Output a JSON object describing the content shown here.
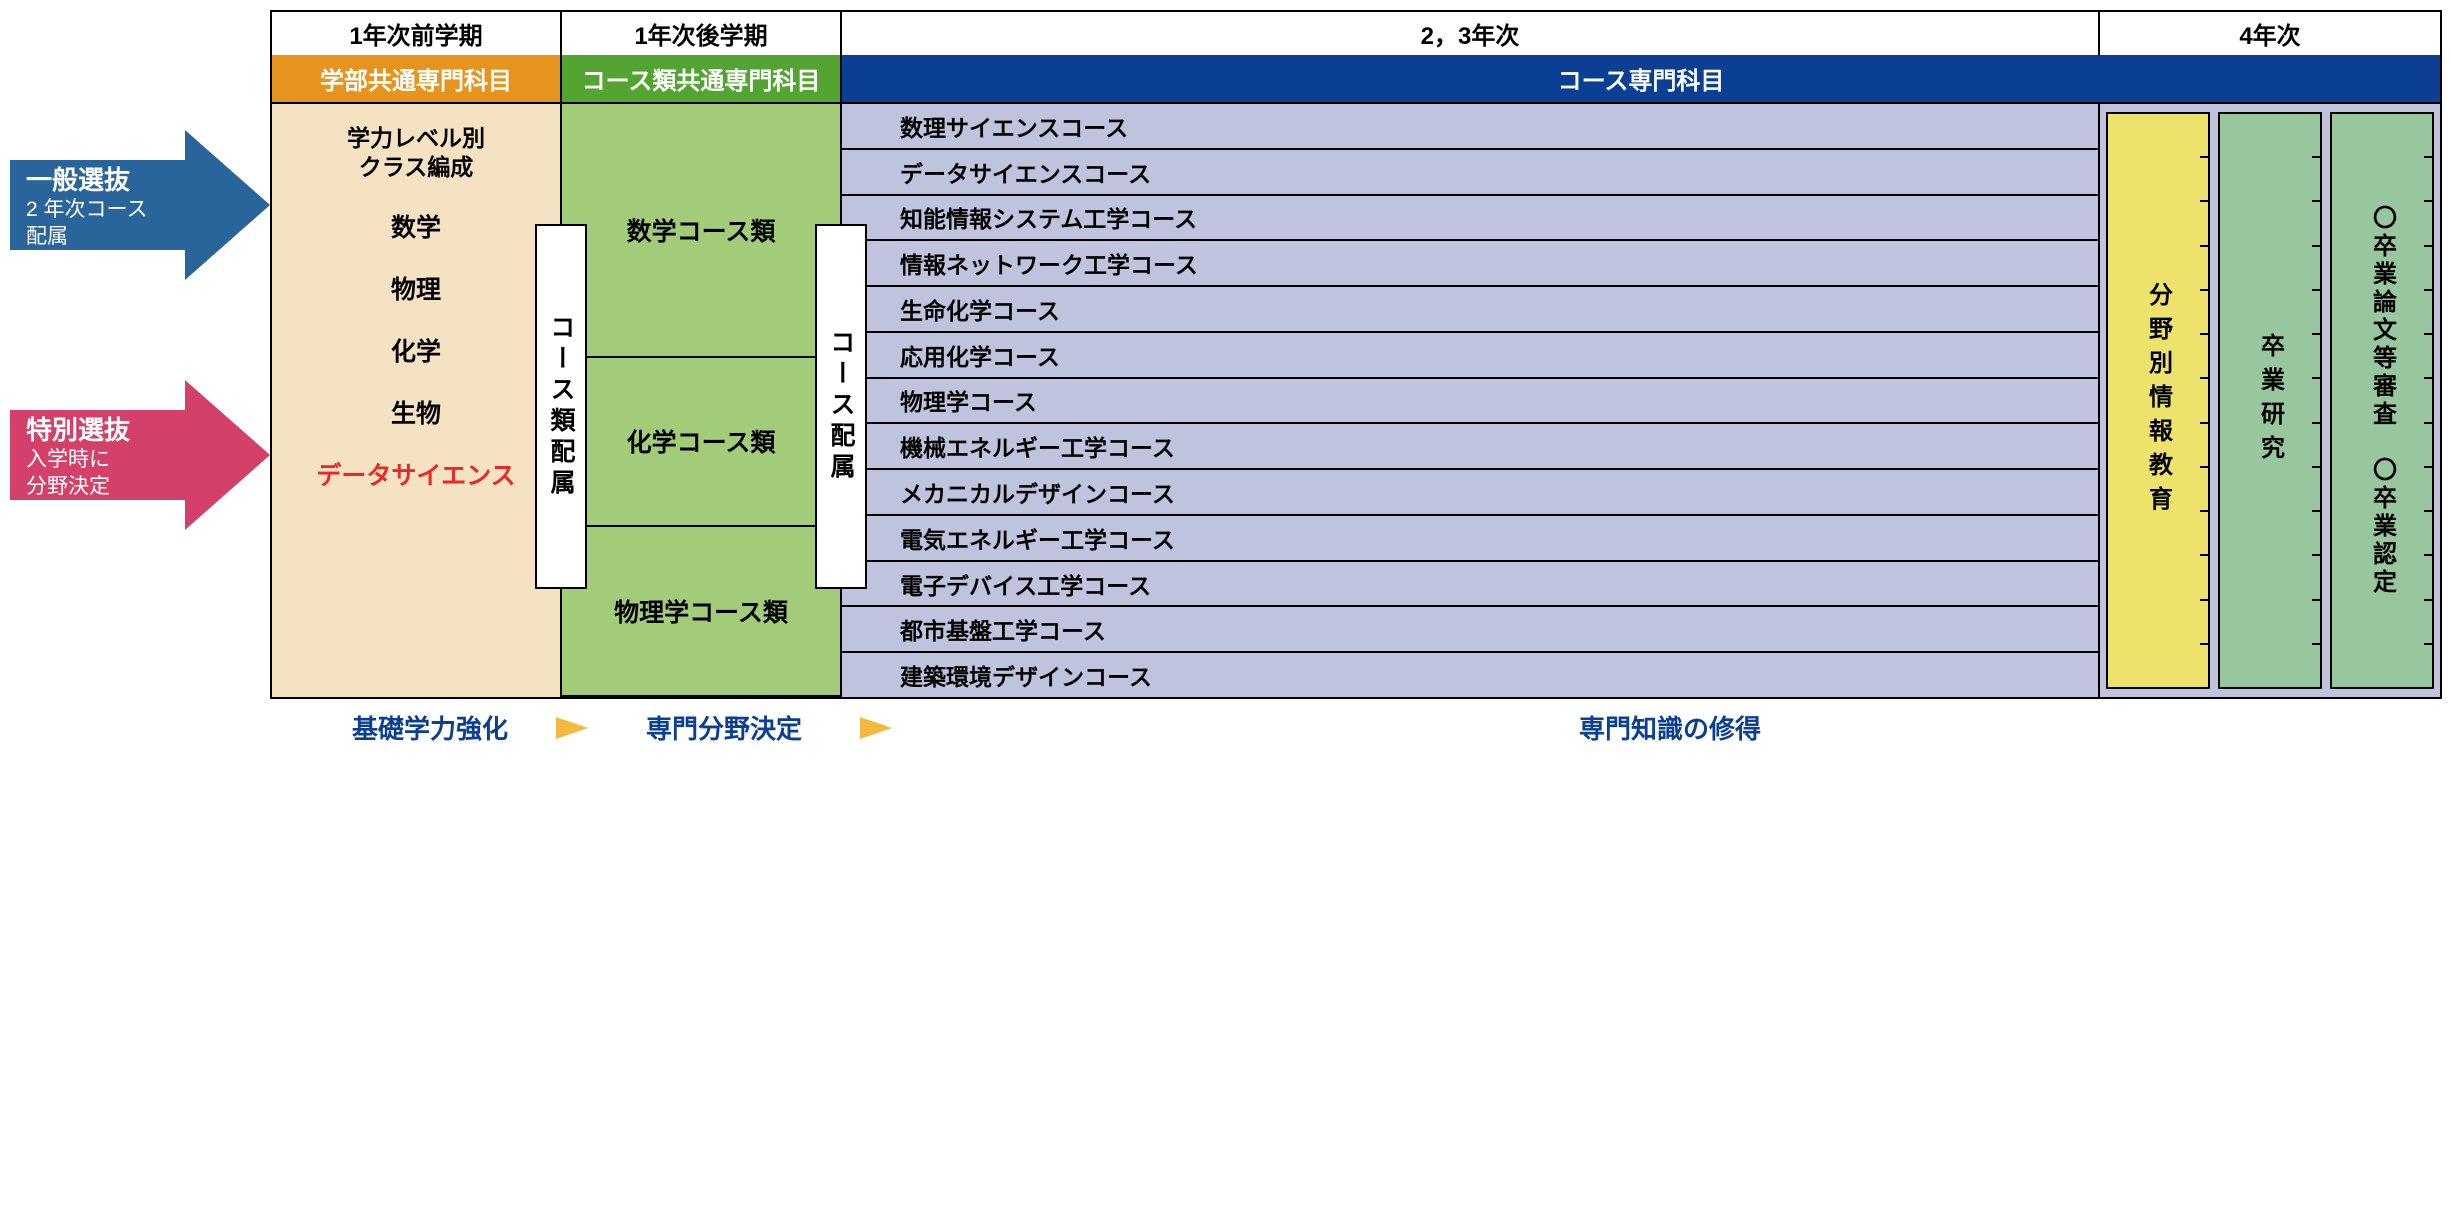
{
  "colors": {
    "arrow_blue": "#29649b",
    "arrow_pink": "#d34069",
    "header_orange": "#e7941e",
    "header_green": "#53a430",
    "header_blue": "#0b3f94",
    "body_beige": "#f5e2c3",
    "body_green": "#a3cc7a",
    "body_lilac": "#c0c3dd",
    "year4_yellow": "#ede26b",
    "year4_green": "#98c69e",
    "ds_red": "#e72a27",
    "footer_blue": "#0b3f94",
    "footer_arrow": "#f4ba3e"
  },
  "arrows": {
    "general": {
      "title": "一般選抜",
      "sub": "2 年次コース\n配属"
    },
    "special": {
      "title": "特別選抜",
      "sub": "入学時に\n分野決定"
    }
  },
  "headers": {
    "y1a": "1年次前学期",
    "y1b": "1年次後学期",
    "y23": "2，3年次",
    "y4": "4年次"
  },
  "titles": {
    "t1": "学部共通専門科目",
    "t2": "コース類共通専門科目",
    "t3": "コース専門科目"
  },
  "col1": {
    "level": "学力レベル別\nクラス編成",
    "subjects": [
      "数学",
      "物理",
      "化学",
      "生物"
    ],
    "ds": "データサイエンス"
  },
  "vbox1": "コース類配属",
  "col2_groups": [
    "数学コース類",
    "化学コース類",
    "物理学コース類"
  ],
  "vbox2": "コース配属",
  "courses": [
    "数理サイエンスコース",
    "データサイエンスコース",
    "知能情報システム工学コース",
    "情報ネットワーク工学コース",
    "生命化学コース",
    "応用化学コース",
    "物理学コース",
    "機械エネルギー工学コース",
    "メカニカルデザインコース",
    "電気エネルギー工学コース",
    "電子デバイス工学コース",
    "都市基盤工学コース",
    "建築環境デザインコース"
  ],
  "year4": {
    "a": "分野別情報教育",
    "b": "卒業研究",
    "c1": "〇卒業論文等審査",
    "c2": "〇卒業認定"
  },
  "footer": {
    "a": "基礎学力強化",
    "b": "専門分野決定",
    "c": "専門知識の修得"
  }
}
